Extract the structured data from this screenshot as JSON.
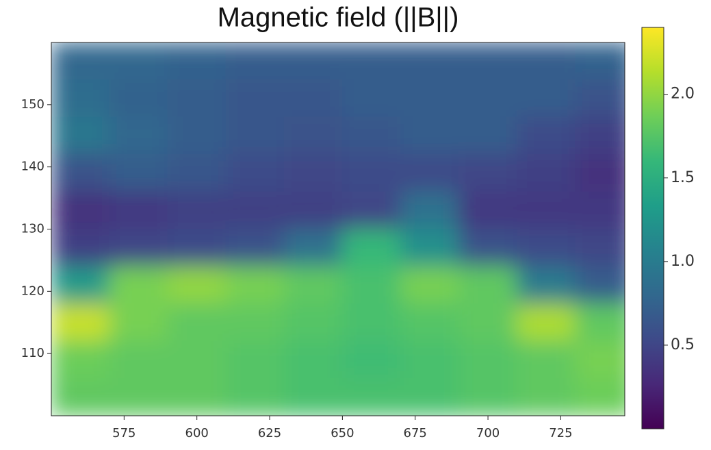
{
  "chart_data": {
    "type": "heatmap",
    "title": "Magnetic field (||B||)",
    "colormap": "viridis",
    "x": [
      560,
      580,
      600,
      620,
      640,
      660,
      680,
      700,
      720,
      740
    ],
    "y": [
      157,
      151,
      145,
      139,
      133,
      127,
      121,
      115,
      109,
      103
    ],
    "z": [
      [
        0.8,
        0.8,
        0.75,
        0.7,
        0.7,
        0.7,
        0.7,
        0.7,
        0.7,
        0.75
      ],
      [
        0.85,
        0.75,
        0.7,
        0.65,
        0.65,
        0.7,
        0.7,
        0.7,
        0.7,
        0.6
      ],
      [
        0.95,
        0.8,
        0.7,
        0.65,
        0.6,
        0.65,
        0.7,
        0.7,
        0.55,
        0.45
      ],
      [
        0.6,
        0.7,
        0.65,
        0.55,
        0.5,
        0.55,
        0.55,
        0.5,
        0.45,
        0.35
      ],
      [
        0.35,
        0.4,
        0.45,
        0.45,
        0.45,
        0.5,
        0.9,
        0.4,
        0.4,
        0.4
      ],
      [
        0.45,
        0.5,
        0.55,
        0.6,
        0.9,
        1.6,
        1.2,
        0.6,
        0.55,
        0.5
      ],
      [
        1.3,
        1.9,
        2.0,
        1.9,
        1.8,
        1.7,
        1.9,
        1.8,
        1.0,
        0.7
      ],
      [
        2.2,
        1.9,
        1.8,
        1.8,
        1.75,
        1.7,
        1.75,
        1.8,
        2.1,
        1.8
      ],
      [
        1.85,
        1.8,
        1.8,
        1.75,
        1.7,
        1.65,
        1.7,
        1.75,
        1.8,
        1.9
      ],
      [
        1.8,
        1.8,
        1.8,
        1.75,
        1.7,
        1.7,
        1.7,
        1.75,
        1.8,
        1.85
      ]
    ],
    "xlim": [
      550,
      747
    ],
    "ylim": [
      100,
      160
    ],
    "xticks": [
      575,
      600,
      625,
      650,
      675,
      700,
      725
    ],
    "yticks": [
      110,
      120,
      130,
      140,
      150
    ],
    "clim": [
      0,
      2.4
    ],
    "cticks": [
      0.5,
      {
        "value": 1.0,
        "label": "1.0"
      },
      1.5,
      {
        "value": 2.0,
        "label": "2.0"
      }
    ]
  }
}
